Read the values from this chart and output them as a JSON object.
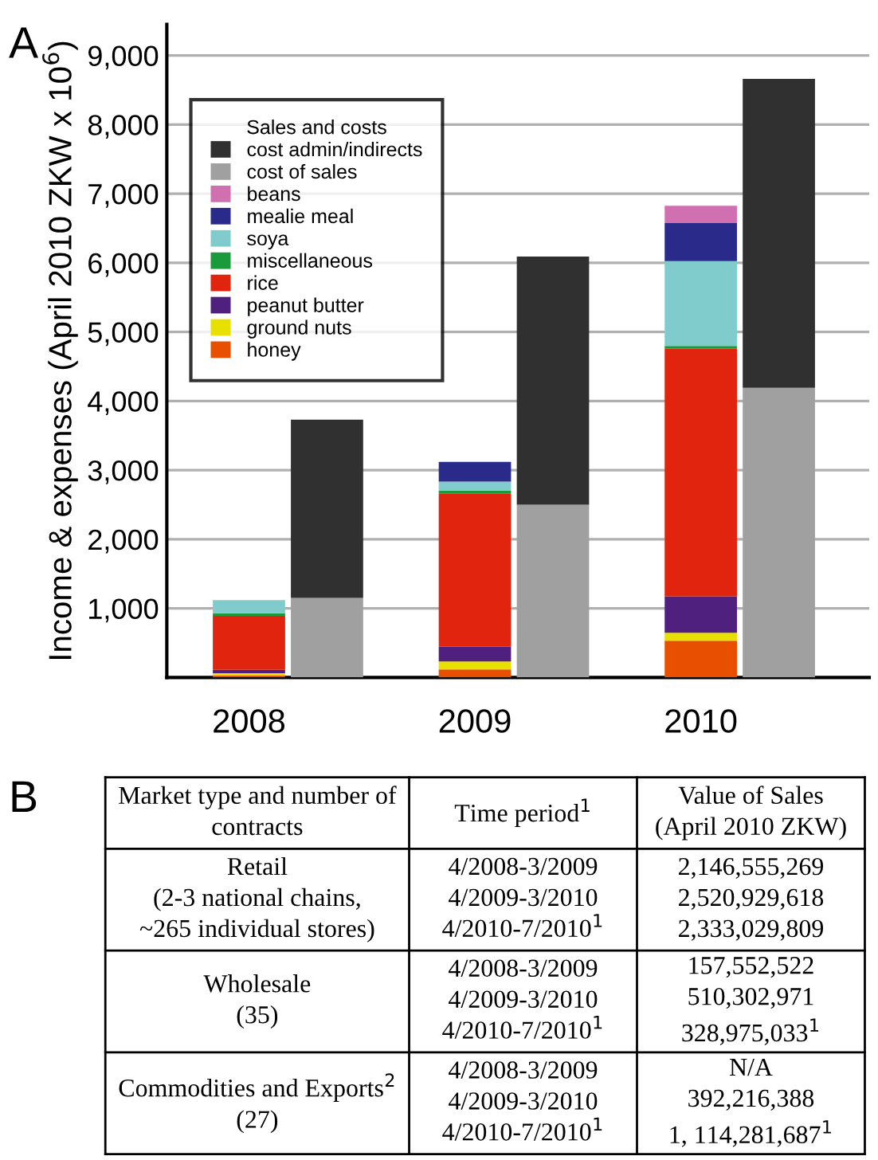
{
  "chart_data": [
    {
      "type": "bar",
      "stacked": true,
      "ylabel": "Income & expenses (April 2010 ZKW x 10$^{6}$)",
      "legend_title": "Sales and costs",
      "legend": "top left",
      "grid": "y",
      "annotations": [
        "A"
      ],
      "categories": [
        "2008",
        null,
        "2009",
        null,
        "2010",
        null
      ],
      "ylim": [
        0,
        9450
      ],
      "yticks": [
        {
          "value": 1000,
          "label": "1,000"
        },
        {
          "value": 2000,
          "label": "2,000"
        },
        {
          "value": 3000,
          "label": "3,000"
        },
        {
          "value": 4000,
          "label": "4,000"
        },
        {
          "value": 5000,
          "label": "5,000"
        },
        {
          "value": 6000,
          "label": "6,000"
        },
        {
          "value": 7000,
          "label": "7,000"
        },
        {
          "value": 8000,
          "label": "8,000"
        },
        {
          "value": 9000,
          "label": "9,000"
        }
      ],
      "series": [
        {
          "name": "honey",
          "color": "#e85000",
          "values": [
            30,
            null,
            115,
            null,
            530,
            null
          ]
        },
        {
          "name": "ground nuts",
          "color": "#e8e000",
          "values": [
            30,
            null,
            115,
            null,
            115,
            null
          ]
        },
        {
          "name": "peanut butter",
          "color": "#50207f",
          "values": [
            50,
            null,
            215,
            null,
            530,
            null
          ]
        },
        {
          "name": "rice",
          "color": "#e0240e",
          "values": [
            780,
            null,
            2220,
            null,
            3580,
            null
          ]
        },
        {
          "name": "miscellaneous",
          "color": "#1a9a3a",
          "values": [
            40,
            null,
            40,
            null,
            40,
            null
          ]
        },
        {
          "name": "soya",
          "color": "#80cccc",
          "values": [
            190,
            null,
            130,
            null,
            1230,
            null
          ]
        },
        {
          "name": "mealie meal",
          "color": "#2a2a8a",
          "values": [
            0,
            null,
            285,
            null,
            550,
            null
          ]
        },
        {
          "name": "beans",
          "color": "#d070b0",
          "values": [
            0,
            null,
            0,
            null,
            250,
            null
          ]
        },
        {
          "name": "cost of sales",
          "color": "#a0a0a0",
          "values": [
            null,
            1150,
            null,
            2500,
            null,
            4190
          ]
        },
        {
          "name": "cost admin/indirects",
          "color": "#303030",
          "values": [
            null,
            2580,
            null,
            3590,
            null,
            4470
          ]
        }
      ]
    },
    {
      "type": "other",
      "annotations": [
        "B",
        "Market type and number of\ncontracts",
        "Time period$^{1}$",
        "Value of Sales\n(April 2010 ZKW)",
        "Retail\n(2-3 national chains,\n~265 individual stores)",
        "4/2008-3/2009\n4/2009-3/2010\n4/2010-7/2010$^{1}$",
        "2,146,555,269\n2,520,929,618\n2,333,029,809",
        "Wholesale\n(35)",
        "4/2008-3/2009\n4/2009-3/2010\n4/2010-7/2010$^{1}$",
        "157,552,522\n510,302,971\n328,975,033$^{1}$",
        "Commodities and Exports$^{2}$\n(27)",
        "4/2008-3/2009\n4/2009-3/2010\n4/2010-7/2010$^{1}$",
        "N/A\n392,216,388\n1, 114,281,687$^{1}$"
      ]
    }
  ]
}
